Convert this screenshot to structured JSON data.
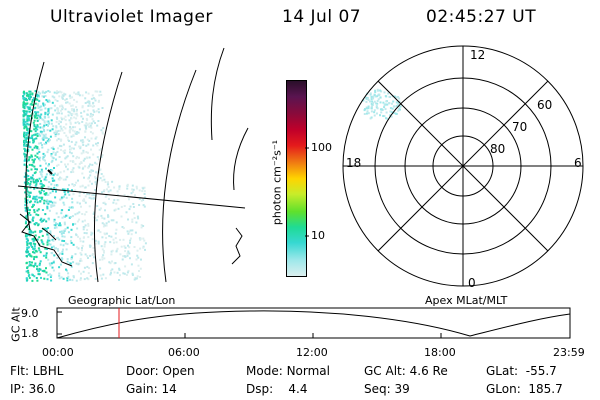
{
  "header": {
    "instrument": "Ultraviolet Imager",
    "date": "14 Jul 07",
    "time": "02:45:27 UT"
  },
  "colorbar": {
    "unit_label": "photon cm⁻²s⁻¹",
    "ticks": [
      "100",
      "10"
    ],
    "colors": [
      "#2a0f2a",
      "#5a1450",
      "#8b0a3a",
      "#c0002a",
      "#e41a1c",
      "#f07d12",
      "#ffd400",
      "#c8ec2a",
      "#5fe02c",
      "#1fdb95",
      "#37d8d2",
      "#9fe8ea",
      "#dcefef"
    ]
  },
  "polar": {
    "mlt_labels": [
      "12",
      "18",
      "6",
      "0"
    ],
    "lat_labels": [
      "60",
      "70",
      "80"
    ]
  },
  "orbit_plot": {
    "left_title": "Geographic Lat/Lon",
    "right_title": "Apex MLat/MLT",
    "ylabel": "GC Alt",
    "yticks": [
      "9.0",
      "1.8"
    ],
    "xticks": [
      "00:00",
      "06:00",
      "12:00",
      "18:00",
      "23:59"
    ],
    "current_marker_color": "#e41a1c"
  },
  "info": {
    "flt_label": "Flt:",
    "flt_value": "LBHL",
    "ip_label": "IP:",
    "ip_value": "36.0",
    "door_label": "Door:",
    "door_value": "Open",
    "gain_label": "Gain:",
    "gain_value": "14",
    "mode_label": "Mode:",
    "mode_value": "Normal",
    "dsp_label": "Dsp:",
    "dsp_value": "4.4",
    "gcalt_label": "GC Alt:",
    "gcalt_value": "4.6 Re",
    "seq_label": "Seq:",
    "seq_value": "39",
    "glat_label": "GLat:",
    "glat_value": "-55.7",
    "glon_label": "GLon:",
    "glon_value": "185.7"
  }
}
